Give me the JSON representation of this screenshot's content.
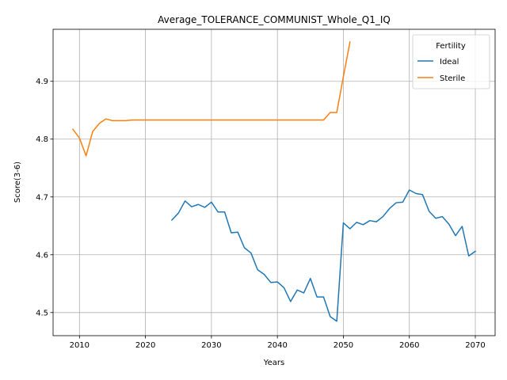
{
  "chart_data": {
    "type": "line",
    "title": "Average_TOLERANCE_COMMUNIST_Whole_Q1_IQ",
    "xlabel": "Years",
    "ylabel": "Score(3-6)",
    "xlim": [
      2006,
      2073
    ],
    "ylim": [
      4.46,
      4.99
    ],
    "xticks": [
      2010,
      2020,
      2030,
      2040,
      2050,
      2060,
      2070
    ],
    "yticks": [
      4.5,
      4.6,
      4.7,
      4.8,
      4.9
    ],
    "ytick_labels": [
      "4.5",
      "4.6",
      "4.7",
      "4.8",
      "4.9"
    ],
    "grid": true,
    "legend": {
      "title": "Fertility",
      "position": "top-right"
    },
    "series": [
      {
        "name": "Ideal",
        "color": "#1f77b4",
        "x": [
          2024,
          2025,
          2026,
          2027,
          2028,
          2029,
          2030,
          2031,
          2032,
          2033,
          2034,
          2035,
          2036,
          2037,
          2038,
          2039,
          2040,
          2041,
          2042,
          2043,
          2044,
          2045,
          2046,
          2047,
          2048,
          2049,
          2050,
          2051,
          2052,
          2053,
          2054,
          2055,
          2056,
          2057,
          2058,
          2059,
          2060,
          2061,
          2062,
          2063,
          2064,
          2065,
          2066,
          2067,
          2068,
          2069,
          2070
        ],
        "y": [
          4.66,
          4.672,
          4.693,
          4.683,
          4.687,
          4.682,
          4.691,
          4.674,
          4.674,
          4.638,
          4.639,
          4.612,
          4.603,
          4.574,
          4.566,
          4.552,
          4.553,
          4.543,
          4.519,
          4.539,
          4.534,
          4.559,
          4.527,
          4.527,
          4.493,
          4.485,
          4.655,
          4.645,
          4.656,
          4.652,
          4.659,
          4.657,
          4.666,
          4.68,
          4.69,
          4.691,
          4.712,
          4.706,
          4.704,
          4.675,
          4.663,
          4.666,
          4.653,
          4.633,
          4.649,
          4.598,
          4.606
        ]
      },
      {
        "name": "Sterile",
        "color": "#ff7f0e",
        "x": [
          2009,
          2010,
          2011,
          2012,
          2013,
          2014,
          2015,
          2016,
          2017,
          2018,
          2019,
          2020,
          2021,
          2022,
          2023,
          2024,
          2025,
          2026,
          2027,
          2028,
          2029,
          2030,
          2031,
          2032,
          2033,
          2034,
          2035,
          2036,
          2037,
          2038,
          2039,
          2040,
          2041,
          2042,
          2043,
          2044,
          2045,
          2046,
          2047,
          2048,
          2049,
          2050,
          2051
        ],
        "y": [
          4.817,
          4.802,
          4.771,
          4.813,
          4.827,
          4.835,
          4.832,
          4.832,
          4.832,
          4.833,
          4.833,
          4.833,
          4.833,
          4.833,
          4.833,
          4.833,
          4.833,
          4.833,
          4.833,
          4.833,
          4.833,
          4.833,
          4.833,
          4.833,
          4.833,
          4.833,
          4.833,
          4.833,
          4.833,
          4.833,
          4.833,
          4.833,
          4.833,
          4.833,
          4.833,
          4.833,
          4.833,
          4.833,
          4.833,
          4.846,
          4.846,
          4.908,
          4.968
        ]
      }
    ]
  }
}
